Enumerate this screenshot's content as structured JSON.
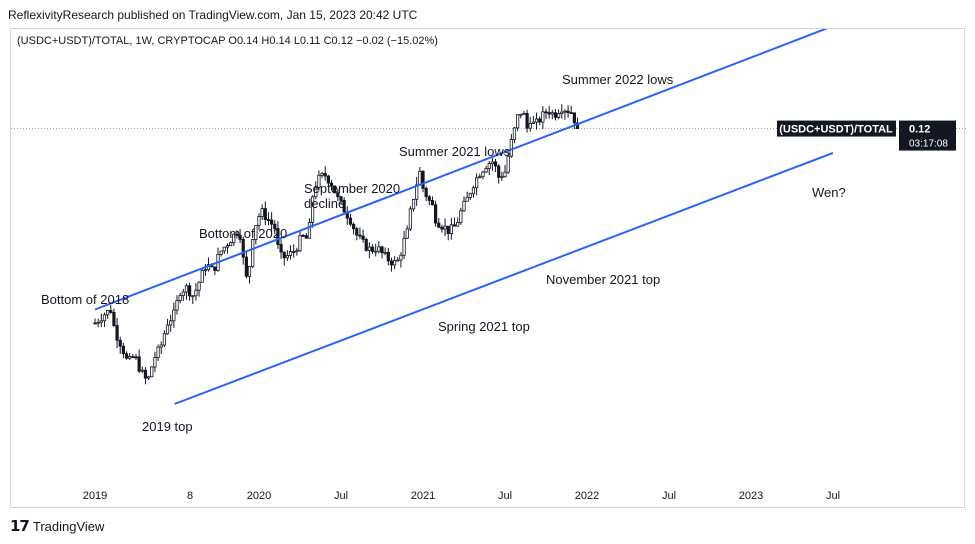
{
  "publisher_line": "ReflexivityResearch published on TradingView.com, Jan 15, 2023 20:42 UTC",
  "symbol_line": "(USDC+USDT)/TOTAL, 1W, CRYPTOCAP  O0.14  H0.14  L0.11  C0.12  −0.02 (−15.02%)",
  "footer": {
    "logo": "17",
    "brand": "TradingView"
  },
  "colors": {
    "candle": "#131722",
    "channel": "#2962ff",
    "price_line": "#9598a1",
    "label_bg": "#131722",
    "label_fg": "#ffffff"
  },
  "chart_data": {
    "type": "candlestick",
    "title": "(USDC+USDT)/TOTAL, 1W, CRYPTOCAP",
    "ohlc": {
      "open": "O0.14",
      "high": "H0.14",
      "low": "L0.11",
      "close": "C0.12",
      "change": "−0.02 (−15.02%)"
    },
    "x_ticks": [
      "2019",
      "8",
      "2020",
      "Jul",
      "2021",
      "Jul",
      "2022",
      "Jul",
      "2023",
      "Jul"
    ],
    "price_label": {
      "symbol": "(USDC+USDT)/TOTAL",
      "value": "0.12",
      "countdown": "03:17:08"
    },
    "close_path": [
      [
        0,
        0.3
      ],
      [
        0.05,
        0.33
      ],
      [
        0.1,
        0.35
      ],
      [
        0.12,
        0.27
      ],
      [
        0.16,
        0.22
      ],
      [
        0.2,
        0.15
      ],
      [
        0.24,
        0.18
      ],
      [
        0.28,
        0.12
      ],
      [
        0.32,
        0.08
      ],
      [
        0.36,
        0.17
      ],
      [
        0.4,
        0.21
      ],
      [
        0.44,
        0.3
      ],
      [
        0.48,
        0.33
      ],
      [
        0.52,
        0.42
      ],
      [
        0.56,
        0.43
      ],
      [
        0.6,
        0.4
      ],
      [
        0.64,
        0.46
      ],
      [
        0.68,
        0.52
      ],
      [
        0.72,
        0.49
      ],
      [
        0.76,
        0.56
      ],
      [
        0.8,
        0.59
      ],
      [
        0.84,
        0.62
      ],
      [
        0.88,
        0.65
      ],
      [
        0.9,
        0.55
      ],
      [
        0.93,
        0.44
      ],
      [
        0.96,
        0.62
      ],
      [
        0.99,
        0.69
      ],
      [
        1.02,
        0.71
      ],
      [
        1.06,
        0.68
      ],
      [
        1.1,
        0.65
      ],
      [
        1.12,
        0.56
      ],
      [
        1.14,
        0.54
      ],
      [
        1.18,
        0.55
      ],
      [
        1.22,
        0.57
      ],
      [
        1.26,
        0.62
      ],
      [
        1.3,
        0.61
      ],
      [
        1.33,
        0.79
      ],
      [
        1.36,
        0.83
      ],
      [
        1.4,
        0.85
      ],
      [
        1.44,
        0.82
      ],
      [
        1.48,
        0.76
      ],
      [
        1.52,
        0.72
      ],
      [
        1.56,
        0.68
      ],
      [
        1.6,
        0.62
      ],
      [
        1.64,
        0.59
      ],
      [
        1.68,
        0.57
      ],
      [
        1.72,
        0.58
      ],
      [
        1.76,
        0.55
      ],
      [
        1.8,
        0.53
      ],
      [
        1.84,
        0.52
      ],
      [
        1.86,
        0.55
      ],
      [
        1.88,
        0.6
      ],
      [
        1.9,
        0.62
      ],
      [
        1.92,
        0.7
      ],
      [
        1.95,
        0.79
      ],
      [
        1.98,
        0.86
      ],
      [
        2.0,
        0.8
      ],
      [
        2.03,
        0.76
      ],
      [
        2.06,
        0.73
      ],
      [
        2.08,
        0.68
      ],
      [
        2.12,
        0.66
      ],
      [
        2.16,
        0.64
      ],
      [
        2.2,
        0.66
      ],
      [
        2.23,
        0.71
      ],
      [
        2.27,
        0.76
      ],
      [
        2.31,
        0.82
      ],
      [
        2.35,
        0.86
      ],
      [
        2.39,
        0.89
      ],
      [
        2.43,
        0.9
      ],
      [
        2.46,
        0.84
      ],
      [
        2.5,
        0.86
      ],
      [
        2.53,
        0.95
      ],
      [
        2.56,
        1.02
      ],
      [
        2.58,
        1.07
      ],
      [
        2.61,
        1.09
      ],
      [
        2.63,
        1.01
      ],
      [
        2.65,
        1.06
      ],
      [
        2.68,
        1.03
      ],
      [
        2.72,
        1.06
      ],
      [
        2.76,
        1.09
      ],
      [
        2.8,
        1.07
      ],
      [
        2.84,
        1.1
      ],
      [
        2.88,
        1.09
      ],
      [
        2.91,
        1.08
      ],
      [
        2.93,
        1.04
      ],
      [
        2.945,
        1.0
      ]
    ],
    "channel": {
      "upper": [
        [
          0,
          0.35
        ],
        [
          4.5,
          1.4
        ]
      ],
      "lower": [
        [
          0.485,
          0.0
        ],
        [
          4.5,
          0.93
        ]
      ]
    },
    "annotations": [
      {
        "text": "Bottom of 2018",
        "at": "near 2019"
      },
      {
        "text": "2019 top",
        "at": "mid 2019"
      },
      {
        "text": "Bottom of 2020",
        "at": "Mar 2020"
      },
      {
        "text": "September 2020",
        "line2": "decline",
        "at": "Sep 2020"
      },
      {
        "text": "Spring 2021 top",
        "at": "Spring 2021"
      },
      {
        "text": "Summer 2021 lows",
        "at": "Summer 2021"
      },
      {
        "text": "November 2021 top",
        "at": "Nov 2021"
      },
      {
        "text": "Summer 2022 lows",
        "at": "Summer 2022"
      },
      {
        "text": "Wen?",
        "at": "mid 2023"
      }
    ]
  }
}
